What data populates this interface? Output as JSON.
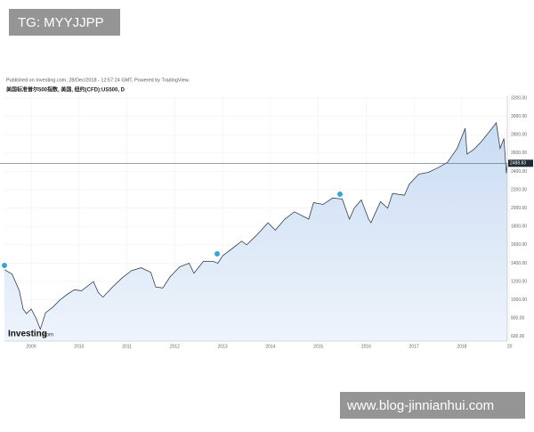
{
  "chart_data": {
    "type": "area",
    "published": "Published on Investing.com, 28/Dec/2018 - 12:57:24 GMT, Powered by TradingView.",
    "subtitle": "美国标准普尔500指数, 美国, 纽约(CFD):US500, D",
    "logo": "Investing",
    "logo_suffix": ".com",
    "last_price": 2488.83,
    "series": [
      {
        "color": "#34404e",
        "x": [
          2008.44,
          2008.6,
          2008.75,
          2008.83,
          2008.9,
          2009.0,
          2009.1,
          2009.19,
          2009.3,
          2009.45,
          2009.6,
          2009.75,
          2009.9,
          2010.05,
          2010.3,
          2010.4,
          2010.5,
          2010.7,
          2010.9,
          2011.1,
          2011.3,
          2011.5,
          2011.6,
          2011.75,
          2011.9,
          2012.1,
          2012.3,
          2012.4,
          2012.6,
          2012.8,
          2012.9,
          2013.0,
          2013.2,
          2013.4,
          2013.5,
          2013.7,
          2013.95,
          2014.1,
          2014.3,
          2014.5,
          2014.8,
          2014.9,
          2015.1,
          2015.3,
          2015.5,
          2015.65,
          2015.75,
          2015.9,
          2016.05,
          2016.1,
          2016.3,
          2016.45,
          2016.55,
          2016.8,
          2016.9,
          2017.1,
          2017.3,
          2017.5,
          2017.7,
          2017.9,
          2018.07,
          2018.11,
          2018.25,
          2018.4,
          2018.6,
          2018.72,
          2018.8,
          2018.88,
          2018.93,
          2018.95
        ],
        "values": [
          1330,
          1280,
          1100,
          900,
          850,
          900,
          800,
          680,
          860,
          920,
          1000,
          1060,
          1110,
          1100,
          1200,
          1080,
          1030,
          1140,
          1240,
          1320,
          1350,
          1300,
          1140,
          1130,
          1250,
          1360,
          1400,
          1290,
          1420,
          1420,
          1400,
          1480,
          1560,
          1640,
          1600,
          1700,
          1840,
          1760,
          1880,
          1960,
          1880,
          2060,
          2040,
          2110,
          2100,
          1880,
          2000,
          2090,
          1880,
          1840,
          2070,
          2000,
          2160,
          2140,
          2260,
          2370,
          2390,
          2440,
          2500,
          2650,
          2870,
          2590,
          2640,
          2720,
          2850,
          2930,
          2650,
          2760,
          2380,
          2488.83
        ]
      }
    ],
    "xlim": [
      2008.44,
      2018.95
    ],
    "xticks": [
      2009,
      2010,
      2011,
      2012,
      2013,
      2014,
      2015,
      2016,
      2017,
      2018,
      {
        "value": 2019,
        "label": "20"
      }
    ],
    "ylim": [
      550,
      3220
    ],
    "yticks": [
      {
        "value": 600,
        "label": "600.00"
      },
      {
        "value": 800,
        "label": "800.00"
      },
      {
        "value": 1000,
        "label": "1000.00"
      },
      {
        "value": 1200,
        "label": "1200.00"
      },
      {
        "value": 1400,
        "label": "1400.00"
      },
      {
        "value": 1600,
        "label": "1600.00"
      },
      {
        "value": 1800,
        "label": "1800.00"
      },
      {
        "value": 2000,
        "label": "2000.00"
      },
      {
        "value": 2200,
        "label": "2200.00"
      },
      {
        "value": 2400,
        "label": "2400.00"
      },
      {
        "value": 2600,
        "label": "2600.00"
      },
      {
        "value": 2800,
        "label": "2800.00"
      },
      {
        "value": 3000,
        "label": "3000.00"
      },
      {
        "value": 3200,
        "label": "3200.00"
      }
    ],
    "grid": true
  },
  "watermarks": {
    "top": "TG: MYYJJPP",
    "bottom": "www.blog-jinnianhui.com"
  }
}
